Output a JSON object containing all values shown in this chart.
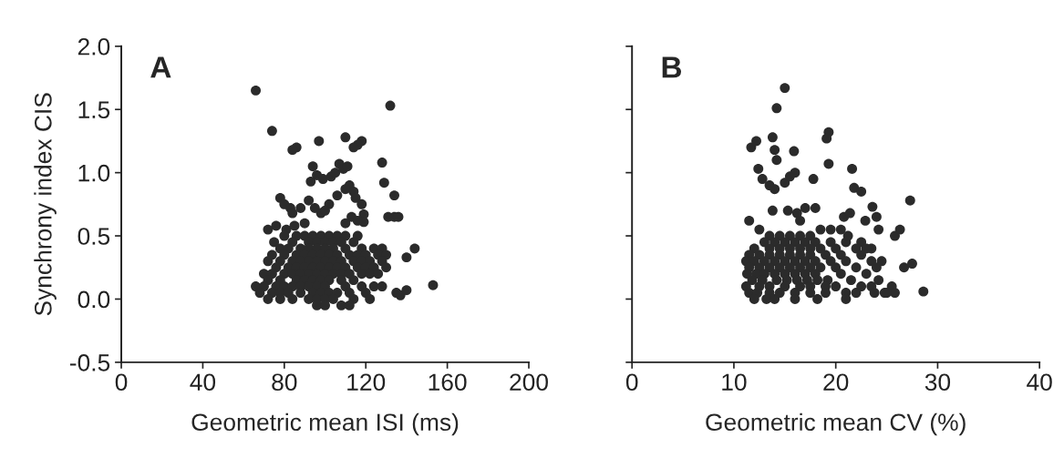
{
  "chart_data": [
    {
      "type": "scatter",
      "ylabel": "Synchrony index CIS",
      "xlabel": "Geometric mean ISI (ms)",
      "annotations": [
        "A"
      ],
      "xlim": [
        0,
        200
      ],
      "xticks": [
        0,
        40,
        80,
        120,
        160,
        200
      ],
      "ylim": [
        -0.5,
        2.0
      ],
      "yticks": [
        {
          "value": -0.5,
          "label": "-0.5"
        },
        {
          "value": 0.0,
          "label": "0.0"
        },
        {
          "value": 0.5,
          "label": "0.5"
        },
        {
          "value": 1.0,
          "label": "1.0"
        },
        {
          "value": 1.5,
          "label": "1.5"
        },
        {
          "value": 2.0,
          "label": "2.0"
        }
      ],
      "grid": false,
      "marker": "circle",
      "series": [
        {
          "color": "#2b2b2b",
          "x": [
            66,
            132,
            74,
            86,
            84,
            97,
            110,
            118,
            116,
            114,
            128,
            129,
            134,
            131,
            134,
            136,
            144,
            140,
            153,
            135,
            137,
            140,
            119,
            119,
            94,
            96,
            93,
            99,
            103,
            105,
            107,
            109,
            111,
            112,
            110,
            106,
            114,
            115,
            118,
            102,
            92,
            95,
            98,
            100,
            110,
            113,
            116,
            78,
            80,
            83,
            84,
            88,
            76,
            72,
            81,
            85,
            90,
            80,
            86,
            90,
            94,
            98,
            102,
            106,
            110,
            116,
            75,
            84,
            92,
            96,
            100,
            104,
            108,
            114,
            78,
            82,
            88,
            92,
            96,
            100,
            104,
            110,
            118,
            124,
            128,
            74,
            80,
            86,
            90,
            94,
            98,
            102,
            106,
            112,
            116,
            120,
            126,
            130,
            72,
            78,
            84,
            88,
            92,
            96,
            100,
            104,
            108,
            114,
            118,
            122,
            128,
            76,
            82,
            86,
            90,
            94,
            98,
            102,
            106,
            110,
            116,
            120,
            124,
            130,
            70,
            74,
            80,
            84,
            88,
            92,
            96,
            100,
            104,
            108,
            112,
            118,
            122,
            126,
            72,
            78,
            86,
            90,
            94,
            98,
            102,
            108,
            114,
            66,
            70,
            76,
            80,
            84,
            88,
            92,
            96,
            100,
            110,
            118,
            124,
            128,
            68,
            74,
            78,
            82,
            88,
            94,
            98,
            102,
            106,
            112,
            120,
            72,
            78,
            84,
            92,
            96,
            100,
            104,
            114,
            122,
            96,
            100,
            108,
            112
          ],
          "values": [
            1.65,
            1.53,
            1.33,
            1.2,
            1.18,
            1.25,
            1.28,
            1.25,
            1.22,
            1.2,
            1.08,
            0.92,
            0.82,
            0.65,
            0.65,
            0.65,
            0.4,
            0.33,
            0.11,
            0.05,
            0.03,
            0.07,
            0.67,
            0.61,
            1.05,
            0.98,
            0.93,
            0.95,
            0.97,
            1.0,
            1.07,
            1.03,
            1.05,
            0.9,
            0.87,
            0.82,
            0.85,
            0.8,
            0.75,
            0.75,
            0.78,
            0.72,
            0.68,
            0.7,
            0.6,
            0.65,
            0.62,
            0.8,
            0.75,
            0.72,
            0.68,
            0.72,
            0.58,
            0.55,
            0.55,
            0.58,
            0.6,
            0.5,
            0.5,
            0.5,
            0.5,
            0.5,
            0.5,
            0.5,
            0.5,
            0.5,
            0.45,
            0.45,
            0.45,
            0.45,
            0.45,
            0.45,
            0.45,
            0.45,
            0.4,
            0.4,
            0.4,
            0.4,
            0.4,
            0.4,
            0.4,
            0.4,
            0.4,
            0.4,
            0.4,
            0.35,
            0.35,
            0.35,
            0.35,
            0.35,
            0.35,
            0.35,
            0.35,
            0.35,
            0.35,
            0.35,
            0.35,
            0.35,
            0.3,
            0.3,
            0.3,
            0.3,
            0.3,
            0.3,
            0.3,
            0.3,
            0.3,
            0.3,
            0.3,
            0.3,
            0.3,
            0.25,
            0.25,
            0.25,
            0.25,
            0.25,
            0.25,
            0.25,
            0.25,
            0.25,
            0.25,
            0.25,
            0.25,
            0.25,
            0.2,
            0.2,
            0.2,
            0.2,
            0.2,
            0.2,
            0.2,
            0.2,
            0.2,
            0.2,
            0.2,
            0.2,
            0.2,
            0.2,
            0.15,
            0.15,
            0.15,
            0.15,
            0.15,
            0.15,
            0.15,
            0.15,
            0.15,
            0.1,
            0.1,
            0.1,
            0.1,
            0.1,
            0.1,
            0.1,
            0.1,
            0.1,
            0.1,
            0.1,
            0.1,
            0.1,
            0.05,
            0.05,
            0.05,
            0.05,
            0.05,
            0.05,
            0.05,
            0.05,
            0.05,
            0.05,
            0.05,
            0.0,
            0.0,
            0.0,
            0.0,
            0.0,
            0.0,
            0.0,
            0.0,
            0.0,
            -0.05,
            -0.05,
            -0.05,
            -0.05
          ]
        }
      ]
    },
    {
      "type": "scatter",
      "xlabel": "Geometric mean CV (%)",
      "annotations": [
        "B"
      ],
      "xlim": [
        0,
        40
      ],
      "xticks": [
        0,
        10,
        20,
        30,
        40
      ],
      "ylim": [
        -0.5,
        2.0
      ],
      "yticks": [
        {
          "value": -0.5,
          "label": null
        },
        {
          "value": 0.0,
          "label": null
        },
        {
          "value": 0.5,
          "label": null
        },
        {
          "value": 1.0,
          "label": null
        },
        {
          "value": 1.5,
          "label": null
        },
        {
          "value": 2.0,
          "label": null
        }
      ],
      "tick_labels": "x",
      "grid": false,
      "marker": "circle",
      "series": [
        {
          "color": "#2b2b2b",
          "x": [
            15,
            14.2,
            19.3,
            19.1,
            19.3,
            21.6,
            15.9,
            11.7,
            12.2,
            13.8,
            14,
            14.2,
            12.4,
            27.3,
            28.6,
            26.7,
            27.5,
            25.8,
            26.3,
            12.8,
            13.5,
            14,
            15,
            15.5,
            16,
            17.8,
            21.8,
            22.5,
            23.6,
            24,
            24.2,
            13.8,
            15.3,
            16.2,
            17,
            18,
            20.8,
            21.4,
            22.9,
            11.5,
            12.5,
            16.5,
            18.5,
            19.5,
            20.5,
            21,
            21.2,
            23.5,
            24.5,
            25.5,
            24.8,
            25.8,
            13.5,
            14.5,
            15.5,
            16.5,
            17.5,
            13,
            14,
            15,
            16,
            17,
            18,
            19.5,
            22.5,
            12,
            13.5,
            14.5,
            15.5,
            16.5,
            17.5,
            18.5,
            20,
            22,
            23,
            11.5,
            12.5,
            13.5,
            14.5,
            15.5,
            16.5,
            17.5,
            19,
            20.5,
            22.5,
            11.2,
            12,
            13,
            14,
            15,
            16,
            17,
            18,
            19.5,
            21,
            23.5,
            11.5,
            12.5,
            13.5,
            14.5,
            15.5,
            16.5,
            17.5,
            18.5,
            20,
            22,
            24,
            11.3,
            12.2,
            13,
            14,
            15,
            16,
            17,
            18,
            20.5,
            23,
            11.8,
            12.8,
            14.2,
            15.2,
            16.2,
            17.2,
            18.2,
            19.2,
            21.5,
            24.2,
            11.2,
            12.5,
            13.5,
            15,
            16.5,
            17.5,
            19,
            20,
            22.5,
            23.5,
            11.5,
            12.3,
            13.5,
            14.5,
            16,
            17.5,
            19,
            21,
            22,
            23.8,
            25,
            12,
            13.2,
            14,
            16,
            18.2,
            21
          ],
          "values": [
            1.67,
            1.51,
            1.32,
            1.27,
            1.07,
            1.03,
            1.17,
            1.2,
            1.25,
            1.28,
            1.18,
            1.1,
            1.03,
            0.78,
            0.06,
            0.25,
            0.28,
            0.5,
            0.55,
            0.95,
            0.9,
            0.87,
            0.92,
            0.97,
            1.0,
            0.95,
            0.88,
            0.85,
            0.73,
            0.65,
            0.55,
            0.7,
            0.7,
            0.68,
            0.72,
            0.72,
            0.65,
            0.68,
            0.62,
            0.62,
            0.55,
            0.62,
            0.55,
            0.55,
            0.55,
            0.45,
            0.5,
            0.4,
            0.3,
            0.1,
            0.05,
            0.05,
            0.5,
            0.5,
            0.5,
            0.5,
            0.5,
            0.45,
            0.45,
            0.45,
            0.45,
            0.45,
            0.45,
            0.45,
            0.45,
            0.4,
            0.4,
            0.4,
            0.4,
            0.4,
            0.4,
            0.4,
            0.4,
            0.4,
            0.4,
            0.35,
            0.35,
            0.35,
            0.35,
            0.35,
            0.35,
            0.35,
            0.35,
            0.35,
            0.35,
            0.3,
            0.3,
            0.3,
            0.3,
            0.3,
            0.3,
            0.3,
            0.3,
            0.3,
            0.3,
            0.3,
            0.25,
            0.25,
            0.25,
            0.25,
            0.25,
            0.25,
            0.25,
            0.25,
            0.25,
            0.25,
            0.25,
            0.2,
            0.2,
            0.2,
            0.2,
            0.2,
            0.2,
            0.2,
            0.2,
            0.2,
            0.2,
            0.15,
            0.15,
            0.15,
            0.15,
            0.15,
            0.15,
            0.15,
            0.15,
            0.15,
            0.15,
            0.1,
            0.1,
            0.1,
            0.1,
            0.1,
            0.1,
            0.1,
            0.1,
            0.1,
            0.1,
            0.05,
            0.05,
            0.05,
            0.05,
            0.05,
            0.05,
            0.05,
            0.05,
            0.05,
            0.05,
            0.05,
            0.0,
            0.0,
            0.0,
            0.0,
            0.0,
            0.0
          ]
        }
      ]
    }
  ]
}
